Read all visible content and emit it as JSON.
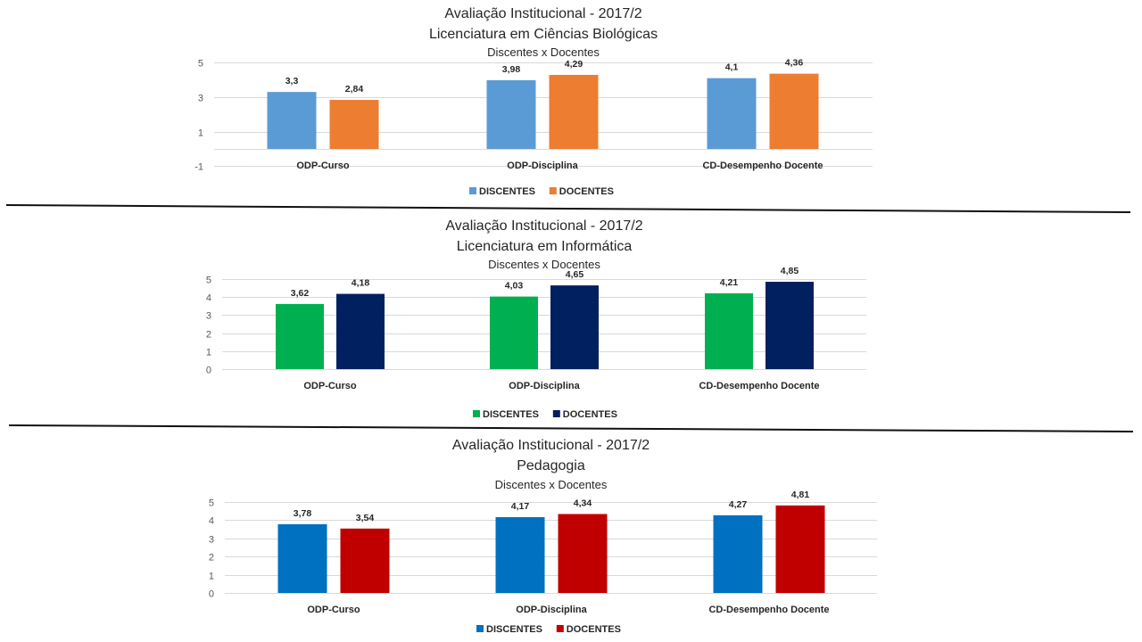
{
  "chart_data": [
    {
      "type": "bar",
      "title": "Avaliação Institucional - 2017/2",
      "subtitle": "Licenciatura em Ciências Biológicas",
      "subtitle2": "Discentes x Docentes",
      "categories": [
        "ODP-Curso",
        "ODP-Disciplina",
        "CD-Desempenho Docente"
      ],
      "series": [
        {
          "name": "DISCENTES",
          "color": "#5b9bd5",
          "values": [
            3.3,
            3.98,
            4.1
          ],
          "labels": [
            "3,3",
            "3,98",
            "4,1"
          ]
        },
        {
          "name": "DOCENTES",
          "color": "#ed7d31",
          "values": [
            2.84,
            4.29,
            4.36
          ],
          "labels": [
            "2,84",
            "4,29",
            "4,36"
          ]
        }
      ],
      "yticks": [
        5,
        3,
        1,
        -1
      ],
      "ytick_labels": [
        "5",
        "3",
        "1",
        "-1"
      ],
      "ylim": [
        -1,
        5
      ],
      "grid": true,
      "legend": "bottom-center",
      "xlabel": "",
      "ylabel": ""
    },
    {
      "type": "bar",
      "title": "Avaliação Institucional - 2017/2",
      "subtitle": "Licenciatura em  Informática",
      "subtitle2": "Discentes x Docentes",
      "categories": [
        "ODP-Curso",
        "ODP-Disciplina",
        "CD-Desempenho Docente"
      ],
      "series": [
        {
          "name": "DISCENTES",
          "color": "#00b050",
          "values": [
            3.62,
            4.03,
            4.21
          ],
          "labels": [
            "3,62",
            "4,03",
            "4,21"
          ]
        },
        {
          "name": "DOCENTES",
          "color": "#002060",
          "values": [
            4.18,
            4.65,
            4.85
          ],
          "labels": [
            "4,18",
            "4,65",
            "4,85"
          ]
        }
      ],
      "yticks": [
        5,
        4,
        3,
        2,
        1,
        0
      ],
      "ytick_labels": [
        "5",
        "4",
        "3",
        "2",
        "1",
        "0"
      ],
      "ylim": [
        0,
        5
      ],
      "grid": true,
      "legend": "bottom-center",
      "xlabel": "",
      "ylabel": ""
    },
    {
      "type": "bar",
      "title": "Avaliação Institucional - 2017/2",
      "subtitle": "Pedagogia",
      "subtitle2": "Discentes x Docentes",
      "categories": [
        "ODP-Curso",
        "ODP-Disciplina",
        "CD-Desempenho Docente"
      ],
      "series": [
        {
          "name": "DISCENTES",
          "color": "#0070c0",
          "values": [
            3.78,
            4.17,
            4.27
          ],
          "labels": [
            "3,78",
            "4,17",
            "4,27"
          ]
        },
        {
          "name": "DOCENTES",
          "color": "#c00000",
          "values": [
            3.54,
            4.34,
            4.81
          ],
          "labels": [
            "3,54",
            "4,34",
            "4,81"
          ]
        }
      ],
      "yticks": [
        5,
        4,
        3,
        2,
        1,
        0
      ],
      "ytick_labels": [
        "5",
        "4",
        "3",
        "2",
        "1",
        "0"
      ],
      "ylim": [
        0,
        5
      ],
      "grid": true,
      "legend": "bottom-center",
      "xlabel": "",
      "ylabel": ""
    }
  ]
}
